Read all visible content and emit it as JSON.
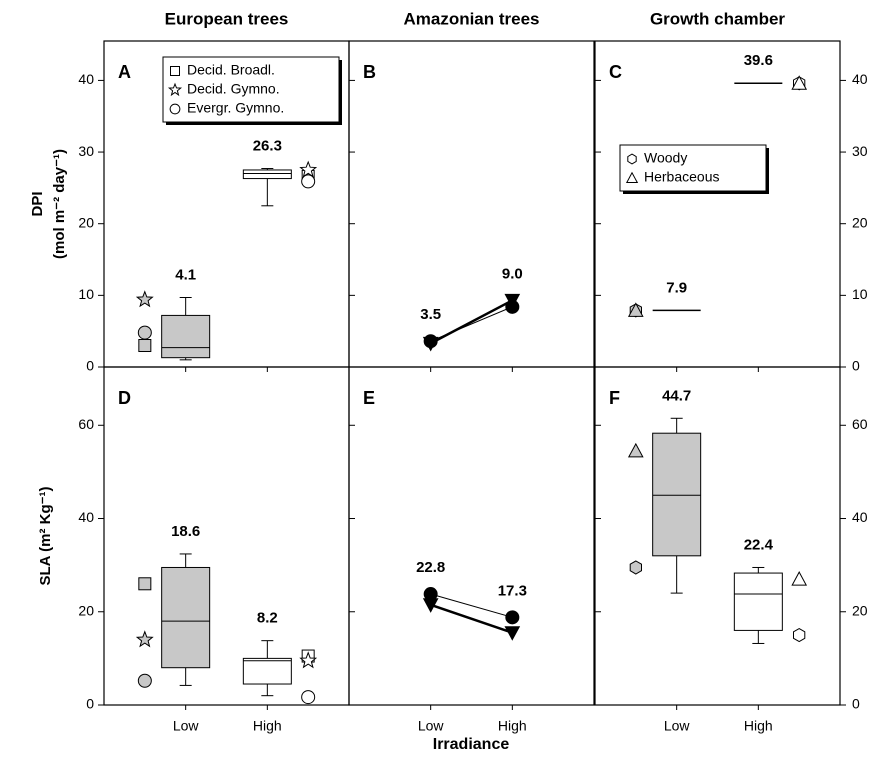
{
  "chart_data": [
    {
      "type": "box",
      "panel": "A",
      "title": "European trees",
      "ylabel": [
        "DPI",
        "(mol m⁻² day⁻¹)"
      ],
      "yaxis": "left",
      "ylim": [
        0,
        45.5
      ],
      "yticks": [
        0,
        10,
        20,
        30,
        40
      ],
      "colors": [
        "#c8c8c8",
        "#ffffff"
      ],
      "boxes": [
        {
          "whislo": 1.0,
          "q1": 1.3,
          "med": 2.7,
          "q3": 7.2,
          "whishi": 9.7
        },
        {
          "whislo": 22.5,
          "q1": 26.3,
          "med": 27.0,
          "q3": 27.5,
          "whishi": 27.7
        }
      ],
      "values": [
        4.1,
        26.3
      ],
      "value_labels": [
        "4.1",
        "26.3"
      ],
      "legend": "upper right",
      "series": [
        {
          "name": "Decid. Broadl.",
          "marker": "square",
          "values": [
            3.0,
            26.6
          ]
        },
        {
          "name": "Decid. Gymno.",
          "marker": "star",
          "values": [
            9.4,
            27.5
          ]
        },
        {
          "name": "Evergr. Gymno.",
          "marker": "circle",
          "values": [
            4.8,
            25.9
          ]
        }
      ]
    },
    {
      "type": "line",
      "panel": "B",
      "title": "Amazonian trees",
      "ylim": [
        0,
        45.5
      ],
      "yticks": [
        0,
        10,
        20,
        30,
        40
      ],
      "values": [
        3.5,
        9.0
      ],
      "value_labels": [
        "3.5",
        "9.0"
      ],
      "series": [
        {
          "marker": "circle",
          "color": "#000000",
          "values": [
            3.6,
            8.4
          ]
        },
        {
          "marker": "triangle-down",
          "color": "#000000",
          "values": [
            3.3,
            9.3
          ]
        }
      ]
    },
    {
      "type": "box",
      "panel": "C",
      "title": "Growth chamber",
      "yaxis": "right",
      "ylim": [
        0,
        45.5
      ],
      "yticks": [
        0,
        10,
        20,
        30,
        40
      ],
      "colors": [
        "#c8c8c8",
        "#ffffff"
      ],
      "boxes": [
        {
          "med": 7.9
        },
        {
          "med": 39.6
        }
      ],
      "values": [
        7.9,
        39.6
      ],
      "value_labels": [
        "7.9",
        "39.6"
      ],
      "legend": "center left",
      "series": [
        {
          "name": "Woody",
          "marker": "hexagon",
          "values": [
            7.9,
            39.6
          ]
        },
        {
          "name": "Herbaceous",
          "marker": "triangle",
          "values": [
            7.9,
            39.6
          ]
        }
      ]
    },
    {
      "type": "box",
      "panel": "D",
      "ylabel": [
        "SLA (m² Kg⁻¹)"
      ],
      "yaxis": "left",
      "categories": [
        "Low",
        "High"
      ],
      "ylim": [
        0,
        72.5
      ],
      "yticks": [
        0,
        20,
        40,
        60
      ],
      "colors": [
        "#c8c8c8",
        "#ffffff"
      ],
      "boxes": [
        {
          "whislo": 4.2,
          "q1": 8.0,
          "med": 18.0,
          "q3": 29.5,
          "whishi": 32.4
        },
        {
          "whislo": 2.0,
          "q1": 4.5,
          "med": 9.5,
          "q3": 10.0,
          "whishi": 13.8
        }
      ],
      "values": [
        18.6,
        8.2
      ],
      "value_labels": [
        "18.6",
        "8.2"
      ],
      "series": [
        {
          "marker": "square",
          "values": [
            26.0,
            10.5
          ]
        },
        {
          "marker": "star",
          "values": [
            14.0,
            9.5
          ]
        },
        {
          "marker": "circle",
          "values": [
            5.2,
            1.7
          ]
        }
      ]
    },
    {
      "type": "line",
      "panel": "E",
      "xlabel": "Irradiance",
      "categories": [
        "Low",
        "High"
      ],
      "ylim": [
        0,
        72.5
      ],
      "yticks": [
        0,
        20,
        40,
        60
      ],
      "values": [
        22.8,
        17.3
      ],
      "value_labels": [
        "22.8",
        "17.3"
      ],
      "series": [
        {
          "marker": "circle",
          "color": "#000000",
          "values": [
            23.8,
            18.8
          ]
        },
        {
          "marker": "triangle-down",
          "color": "#000000",
          "values": [
            21.5,
            15.5
          ]
        }
      ]
    },
    {
      "type": "box",
      "panel": "F",
      "yaxis": "right",
      "categories": [
        "Low",
        "High"
      ],
      "ylim": [
        0,
        72.5
      ],
      "yticks": [
        0,
        20,
        40,
        60
      ],
      "colors": [
        "#c8c8c8",
        "#ffffff"
      ],
      "boxes": [
        {
          "whislo": 24.0,
          "q1": 32.0,
          "med": 45.0,
          "q3": 58.3,
          "whishi": 61.5
        },
        {
          "whislo": 13.2,
          "q1": 16.0,
          "med": 23.8,
          "q3": 28.3,
          "whishi": 29.5
        }
      ],
      "values": [
        44.7,
        22.4
      ],
      "value_labels": [
        "44.7",
        "22.4"
      ],
      "series": [
        {
          "marker": "hexagon",
          "values": [
            29.5,
            15.0
          ]
        },
        {
          "marker": "triangle",
          "values": [
            54.5,
            27.0
          ]
        }
      ]
    }
  ]
}
